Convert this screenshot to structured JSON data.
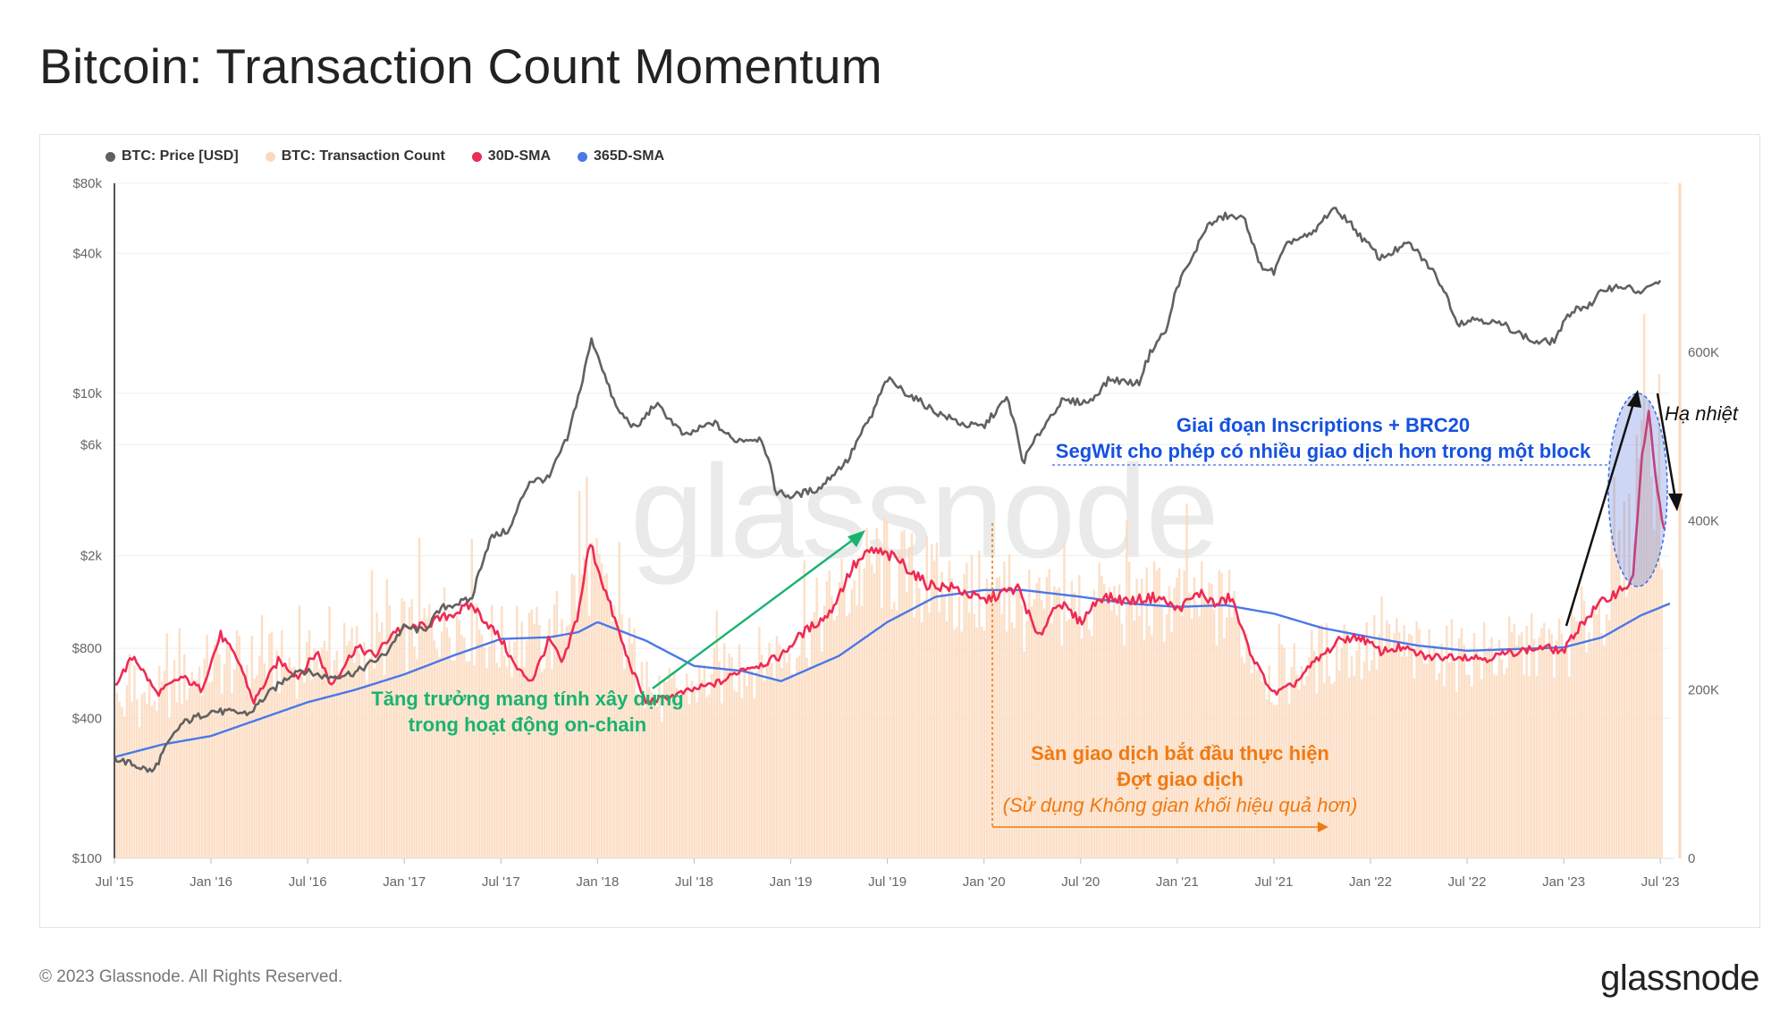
{
  "title": "Bitcoin: Transaction Count Momentum",
  "legend": [
    {
      "label": "BTC: Price [USD]",
      "color": "#616161"
    },
    {
      "label": "BTC: Transaction Count",
      "color": "#fcd9bd"
    },
    {
      "label": "30D-SMA",
      "color": "#ee2a55"
    },
    {
      "label": "365D-SMA",
      "color": "#4a78e8"
    }
  ],
  "watermark": "glassnode",
  "footer": "© 2023 Glassnode. All Rights Reserved.",
  "brand": "glassnode",
  "annotations": {
    "growth_line1": "Tăng trưởng mang tính xây dựng",
    "growth_line2": "trong hoạt động on-chain",
    "inscriptions_line1": "Giai đoạn Inscriptions + BRC20",
    "inscriptions_line2": "SegWit cho phép có nhiều giao dịch hơn trong một block",
    "batching_line1": "Sàn giao dịch bắt đầu thực hiện",
    "batching_line2": "Đợt giao dịch",
    "batching_line3": "(Sử dụng Không gian khối hiệu quả hơn)",
    "cooling": "Hạ nhiệt"
  },
  "chart_data": {
    "type": "line",
    "title": "Bitcoin: Transaction Count Momentum",
    "x_range": [
      2015.5,
      2023.55
    ],
    "x_ticks": [
      {
        "t": 2015.5,
        "label": "Jul '15"
      },
      {
        "t": 2016.0,
        "label": "Jan '16"
      },
      {
        "t": 2016.5,
        "label": "Jul '16"
      },
      {
        "t": 2017.0,
        "label": "Jan '17"
      },
      {
        "t": 2017.5,
        "label": "Jul '17"
      },
      {
        "t": 2018.0,
        "label": "Jan '18"
      },
      {
        "t": 2018.5,
        "label": "Jul '18"
      },
      {
        "t": 2019.0,
        "label": "Jan '19"
      },
      {
        "t": 2019.5,
        "label": "Jul '19"
      },
      {
        "t": 2020.0,
        "label": "Jan '20"
      },
      {
        "t": 2020.5,
        "label": "Jul '20"
      },
      {
        "t": 2021.0,
        "label": "Jan '21"
      },
      {
        "t": 2021.5,
        "label": "Jul '21"
      },
      {
        "t": 2022.0,
        "label": "Jan '22"
      },
      {
        "t": 2022.5,
        "label": "Jul '22"
      },
      {
        "t": 2023.0,
        "label": "Jan '23"
      },
      {
        "t": 2023.5,
        "label": "Jul '23"
      }
    ],
    "y_left": {
      "scale": "log",
      "range": [
        100,
        80000
      ],
      "ticks": [
        {
          "v": 100,
          "label": "$100"
        },
        {
          "v": 400,
          "label": "$400"
        },
        {
          "v": 800,
          "label": "$800"
        },
        {
          "v": 2000,
          "label": "$2k"
        },
        {
          "v": 6000,
          "label": "$6k"
        },
        {
          "v": 10000,
          "label": "$10k"
        },
        {
          "v": 40000,
          "label": "$40k"
        },
        {
          "v": 80000,
          "label": "$80k"
        }
      ]
    },
    "y_right": {
      "scale": "linear",
      "range": [
        0,
        800000
      ],
      "ticks": [
        {
          "v": 0,
          "label": "0"
        },
        {
          "v": 200000,
          "label": "200K"
        },
        {
          "v": 400000,
          "label": "400K"
        },
        {
          "v": 600000,
          "label": "600K"
        }
      ]
    },
    "series": [
      {
        "name": "BTC: Price [USD]",
        "axis": "left",
        "color": "#616161",
        "points": [
          [
            2015.5,
            270
          ],
          [
            2015.7,
            235
          ],
          [
            2015.85,
            380
          ],
          [
            2016.0,
            430
          ],
          [
            2016.2,
            420
          ],
          [
            2016.45,
            650
          ],
          [
            2016.6,
            600
          ],
          [
            2016.75,
            630
          ],
          [
            2016.9,
            750
          ],
          [
            2017.0,
            990
          ],
          [
            2017.1,
            950
          ],
          [
            2017.2,
            1200
          ],
          [
            2017.35,
            1300
          ],
          [
            2017.45,
            2400
          ],
          [
            2017.55,
            2600
          ],
          [
            2017.65,
            4200
          ],
          [
            2017.75,
            4300
          ],
          [
            2017.85,
            6500
          ],
          [
            2017.92,
            11000
          ],
          [
            2017.97,
            17000
          ],
          [
            2018.05,
            11000
          ],
          [
            2018.1,
            8500
          ],
          [
            2018.2,
            7000
          ],
          [
            2018.3,
            9000
          ],
          [
            2018.45,
            6500
          ],
          [
            2018.6,
            7500
          ],
          [
            2018.7,
            6300
          ],
          [
            2018.85,
            6400
          ],
          [
            2018.92,
            3800
          ],
          [
            2019.0,
            3600
          ],
          [
            2019.15,
            3900
          ],
          [
            2019.3,
            5200
          ],
          [
            2019.42,
            8000
          ],
          [
            2019.5,
            11500
          ],
          [
            2019.6,
            10000
          ],
          [
            2019.75,
            8300
          ],
          [
            2019.9,
            7300
          ],
          [
            2020.0,
            7200
          ],
          [
            2020.12,
            9500
          ],
          [
            2020.2,
            5000
          ],
          [
            2020.3,
            7000
          ],
          [
            2020.4,
            9200
          ],
          [
            2020.55,
            9200
          ],
          [
            2020.65,
            11500
          ],
          [
            2020.8,
            11000
          ],
          [
            2020.87,
            15500
          ],
          [
            2020.95,
            19000
          ],
          [
            2021.0,
            29000
          ],
          [
            2021.08,
            38000
          ],
          [
            2021.15,
            52000
          ],
          [
            2021.25,
            58000
          ],
          [
            2021.35,
            56000
          ],
          [
            2021.42,
            36000
          ],
          [
            2021.5,
            33000
          ],
          [
            2021.58,
            45000
          ],
          [
            2021.7,
            48000
          ],
          [
            2021.8,
            62000
          ],
          [
            2021.87,
            57000
          ],
          [
            2021.95,
            47000
          ],
          [
            2022.05,
            38000
          ],
          [
            2022.2,
            44000
          ],
          [
            2022.35,
            31000
          ],
          [
            2022.45,
            20000
          ],
          [
            2022.55,
            21000
          ],
          [
            2022.7,
            19500
          ],
          [
            2022.85,
            16500
          ],
          [
            2022.95,
            16800
          ],
          [
            2023.05,
            23000
          ],
          [
            2023.15,
            24000
          ],
          [
            2023.2,
            28000
          ],
          [
            2023.3,
            29000
          ],
          [
            2023.4,
            27000
          ],
          [
            2023.5,
            30500
          ]
        ]
      },
      {
        "name": "30D-SMA",
        "axis": "right",
        "color": "#ee2a55",
        "points": [
          [
            2015.5,
            205000
          ],
          [
            2015.6,
            240000
          ],
          [
            2015.72,
            195000
          ],
          [
            2015.85,
            215000
          ],
          [
            2015.95,
            200000
          ],
          [
            2016.05,
            265000
          ],
          [
            2016.15,
            230000
          ],
          [
            2016.22,
            185000
          ],
          [
            2016.35,
            235000
          ],
          [
            2016.45,
            215000
          ],
          [
            2016.55,
            245000
          ],
          [
            2016.62,
            205000
          ],
          [
            2016.75,
            250000
          ],
          [
            2016.85,
            240000
          ],
          [
            2016.95,
            270000
          ],
          [
            2017.1,
            275000
          ],
          [
            2017.25,
            290000
          ],
          [
            2017.35,
            300000
          ],
          [
            2017.5,
            260000
          ],
          [
            2017.58,
            225000
          ],
          [
            2017.66,
            210000
          ],
          [
            2017.75,
            260000
          ],
          [
            2017.82,
            230000
          ],
          [
            2017.9,
            290000
          ],
          [
            2017.96,
            375000
          ],
          [
            2018.05,
            310000
          ],
          [
            2018.15,
            240000
          ],
          [
            2018.25,
            185000
          ],
          [
            2018.35,
            190000
          ],
          [
            2018.5,
            200000
          ],
          [
            2018.65,
            210000
          ],
          [
            2018.75,
            225000
          ],
          [
            2018.85,
            230000
          ],
          [
            2018.95,
            240000
          ],
          [
            2019.05,
            265000
          ],
          [
            2019.2,
            290000
          ],
          [
            2019.32,
            345000
          ],
          [
            2019.42,
            365000
          ],
          [
            2019.55,
            355000
          ],
          [
            2019.7,
            325000
          ],
          [
            2019.85,
            320000
          ],
          [
            2020.0,
            305000
          ],
          [
            2020.1,
            315000
          ],
          [
            2020.18,
            320000
          ],
          [
            2020.28,
            260000
          ],
          [
            2020.38,
            305000
          ],
          [
            2020.5,
            280000
          ],
          [
            2020.6,
            310000
          ],
          [
            2020.75,
            305000
          ],
          [
            2020.9,
            310000
          ],
          [
            2021.0,
            295000
          ],
          [
            2021.12,
            315000
          ],
          [
            2021.2,
            300000
          ],
          [
            2021.28,
            310000
          ],
          [
            2021.35,
            260000
          ],
          [
            2021.42,
            225000
          ],
          [
            2021.5,
            195000
          ],
          [
            2021.6,
            205000
          ],
          [
            2021.7,
            230000
          ],
          [
            2021.85,
            260000
          ],
          [
            2021.95,
            262000
          ],
          [
            2022.05,
            245000
          ],
          [
            2022.15,
            250000
          ],
          [
            2022.3,
            238000
          ],
          [
            2022.45,
            240000
          ],
          [
            2022.6,
            237000
          ],
          [
            2022.75,
            245000
          ],
          [
            2022.9,
            250000
          ],
          [
            2023.0,
            245000
          ],
          [
            2023.08,
            275000
          ],
          [
            2023.18,
            300000
          ],
          [
            2023.3,
            320000
          ],
          [
            2023.36,
            330000
          ],
          [
            2023.4,
            470000
          ],
          [
            2023.44,
            525000
          ],
          [
            2023.48,
            440000
          ],
          [
            2023.52,
            390000
          ]
        ]
      },
      {
        "name": "365D-SMA",
        "axis": "right",
        "color": "#4a78e8",
        "points": [
          [
            2015.5,
            120000
          ],
          [
            2015.75,
            135000
          ],
          [
            2016.0,
            145000
          ],
          [
            2016.25,
            165000
          ],
          [
            2016.5,
            185000
          ],
          [
            2016.75,
            200000
          ],
          [
            2017.0,
            218000
          ],
          [
            2017.25,
            240000
          ],
          [
            2017.5,
            260000
          ],
          [
            2017.75,
            262000
          ],
          [
            2017.9,
            268000
          ],
          [
            2018.0,
            280000
          ],
          [
            2018.25,
            258000
          ],
          [
            2018.5,
            228000
          ],
          [
            2018.75,
            222000
          ],
          [
            2018.95,
            210000
          ],
          [
            2019.25,
            240000
          ],
          [
            2019.5,
            280000
          ],
          [
            2019.75,
            310000
          ],
          [
            2020.0,
            318000
          ],
          [
            2020.2,
            318000
          ],
          [
            2020.5,
            310000
          ],
          [
            2020.75,
            302000
          ],
          [
            2021.0,
            298000
          ],
          [
            2021.25,
            300000
          ],
          [
            2021.5,
            290000
          ],
          [
            2021.75,
            273000
          ],
          [
            2022.0,
            262000
          ],
          [
            2022.25,
            252000
          ],
          [
            2022.5,
            246000
          ],
          [
            2022.75,
            248000
          ],
          [
            2023.0,
            250000
          ],
          [
            2023.2,
            262000
          ],
          [
            2023.4,
            288000
          ],
          [
            2023.55,
            302000
          ]
        ]
      },
      {
        "name": "BTC: Transaction Count",
        "axis": "right",
        "color": "#fcd9bd",
        "type": "bar",
        "points": [
          [
            2015.5,
            180000
          ],
          [
            2015.75,
            195000
          ],
          [
            2016.0,
            230000
          ],
          [
            2016.25,
            230000
          ],
          [
            2016.5,
            230000
          ],
          [
            2016.75,
            245000
          ],
          [
            2017.0,
            265000
          ],
          [
            2017.25,
            285000
          ],
          [
            2017.5,
            255000
          ],
          [
            2017.75,
            255000
          ],
          [
            2017.95,
            350000
          ],
          [
            2018.1,
            280000
          ],
          [
            2018.3,
            185000
          ],
          [
            2018.5,
            205000
          ],
          [
            2018.75,
            225000
          ],
          [
            2019.0,
            250000
          ],
          [
            2019.25,
            310000
          ],
          [
            2019.45,
            350000
          ],
          [
            2019.75,
            320000
          ],
          [
            2020.0,
            310000
          ],
          [
            2020.25,
            290000
          ],
          [
            2020.5,
            300000
          ],
          [
            2020.75,
            300000
          ],
          [
            2021.0,
            305000
          ],
          [
            2021.25,
            295000
          ],
          [
            2021.5,
            210000
          ],
          [
            2021.75,
            240000
          ],
          [
            2022.0,
            250000
          ],
          [
            2022.25,
            240000
          ],
          [
            2022.5,
            240000
          ],
          [
            2022.75,
            245000
          ],
          [
            2023.0,
            250000
          ],
          [
            2023.2,
            300000
          ],
          [
            2023.35,
            380000
          ],
          [
            2023.42,
            590000
          ],
          [
            2023.47,
            470000
          ],
          [
            2023.52,
            380000
          ]
        ]
      }
    ]
  }
}
